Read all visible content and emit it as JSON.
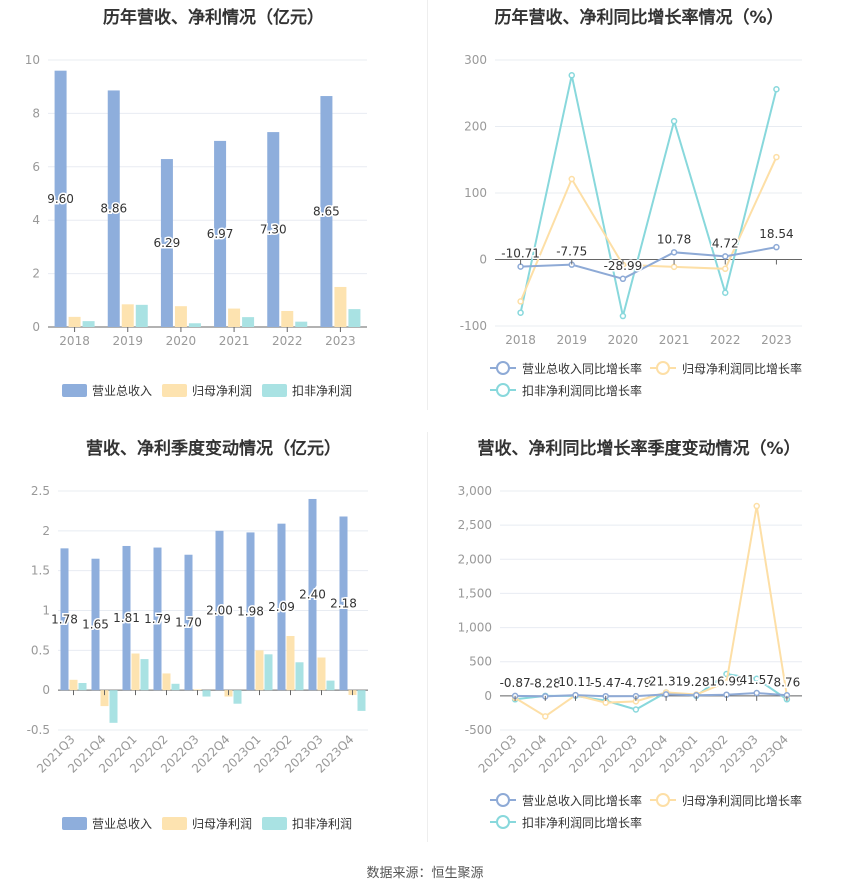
{
  "colors": {
    "revenue": "#8eaedc",
    "net_profit": "#fde3b0",
    "deducted_profit": "#a9e2e3",
    "revenue_line": "#8eaad6",
    "net_line": "#fddfa6",
    "deducted_line": "#88d8dc",
    "grid": "#e8ecf2",
    "axis_text": "#999999",
    "label_text": "#333333"
  },
  "source": "数据来源：恒生聚源",
  "chart_data": [
    {
      "type": "bar",
      "title": "历年营收、净利情况（亿元）",
      "categories": [
        "2018",
        "2019",
        "2020",
        "2021",
        "2022",
        "2023"
      ],
      "ylim": [
        0,
        10
      ],
      "yticks": [
        "0",
        "2",
        "4",
        "6",
        "8",
        "10"
      ],
      "series": [
        {
          "name": "营业总收入",
          "values": [
            9.6,
            8.86,
            6.29,
            6.97,
            7.3,
            8.65
          ],
          "labels": [
            "9.60",
            "8.86",
            "6.29",
            "6.97",
            "7.30",
            "8.65"
          ]
        },
        {
          "name": "归母净利润",
          "values": [
            0.38,
            0.85,
            0.78,
            0.69,
            0.6,
            1.5
          ]
        },
        {
          "name": "扣非净利润",
          "values": [
            0.22,
            0.83,
            0.14,
            0.37,
            0.2,
            0.67
          ]
        }
      ],
      "legend": "bottom",
      "grid": true
    },
    {
      "type": "line",
      "title": "历年营收、净利同比增长率情况（%）",
      "categories": [
        "2018",
        "2019",
        "2020",
        "2021",
        "2022",
        "2023"
      ],
      "ylim": [
        -100,
        300
      ],
      "yticks": [
        "-100",
        "0",
        "100",
        "200",
        "300"
      ],
      "series": [
        {
          "name": "营业总收入同比增长率",
          "values": [
            -10.71,
            -7.75,
            -28.99,
            10.78,
            4.72,
            18.54
          ],
          "labels": [
            "-10.71",
            "-7.75",
            "-28.99",
            "10.78",
            "4.72",
            "18.54"
          ]
        },
        {
          "name": "归母净利润同比增长率",
          "values": [
            -63,
            121,
            -8,
            -11,
            -14,
            154
          ]
        },
        {
          "name": "扣非净利润同比增长率",
          "values": [
            -80,
            277,
            -85,
            208,
            -50,
            256
          ]
        }
      ],
      "legend": "bottom",
      "grid": true
    },
    {
      "type": "bar",
      "title": "营收、净利季度变动情况（亿元）",
      "categories": [
        "2021Q3",
        "2021Q4",
        "2022Q1",
        "2022Q2",
        "2022Q3",
        "2022Q4",
        "2023Q1",
        "2023Q2",
        "2023Q3",
        "2023Q4"
      ],
      "ylim": [
        -0.5,
        2.5
      ],
      "yticks": [
        "-0.5",
        "0",
        "0.5",
        "1",
        "1.5",
        "2",
        "2.5"
      ],
      "series": [
        {
          "name": "营业总收入",
          "values": [
            1.78,
            1.65,
            1.81,
            1.79,
            1.7,
            2.0,
            1.98,
            2.09,
            2.4,
            2.18
          ],
          "labels": [
            "1.78",
            "1.65",
            "1.81",
            "1.79",
            "1.70",
            "2.00",
            "1.98",
            "2.09",
            "2.40",
            "2.18"
          ]
        },
        {
          "name": "归母净利润",
          "values": [
            0.13,
            -0.2,
            0.46,
            0.21,
            0.01,
            -0.08,
            0.5,
            0.68,
            0.41,
            -0.06
          ]
        },
        {
          "name": "扣非净利润",
          "values": [
            0.09,
            -0.41,
            0.39,
            0.08,
            -0.08,
            -0.17,
            0.45,
            0.35,
            0.12,
            -0.26
          ]
        }
      ],
      "legend": "bottom",
      "grid": true
    },
    {
      "type": "line",
      "title": "营收、净利同比增长率季度变动情况（%）",
      "categories": [
        "2021Q3",
        "2021Q4",
        "2022Q1",
        "2022Q2",
        "2022Q3",
        "2022Q4",
        "2023Q1",
        "2023Q2",
        "2023Q3",
        "2023Q4"
      ],
      "ylim": [
        -500,
        3000
      ],
      "yticks": [
        "-500",
        "0",
        "500",
        "1,000",
        "1,500",
        "2,000",
        "2,500",
        "3,000"
      ],
      "series": [
        {
          "name": "营业总收入同比增长率",
          "values": [
            -0.87,
            -8.28,
            10.11,
            -5.47,
            -4.79,
            21.31,
            9.28,
            16.99,
            41.57,
            8.76
          ],
          "labels": [
            "-0.87",
            "-8.28",
            "10.11",
            "-5.47",
            "-4.79",
            "21.31",
            "9.28",
            "16.99",
            "41.57",
            "8.76"
          ]
        },
        {
          "name": "归母净利润同比增长率",
          "values": [
            -30,
            -300,
            10,
            -100,
            -80,
            50,
            20,
            200,
            2780,
            0
          ]
        },
        {
          "name": "扣非净利润同比增长率",
          "values": [
            -50,
            0,
            0,
            -70,
            -200,
            50,
            0,
            320,
            250,
            -50
          ]
        }
      ],
      "legend": "bottom",
      "grid": true
    }
  ]
}
